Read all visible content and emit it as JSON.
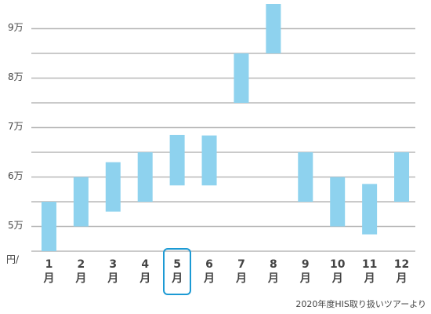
{
  "chart_data": {
    "type": "floating-bar",
    "unit_label": "円/",
    "source": "2020年度HIS取り扱いツアーより",
    "categories": [
      "1\n月",
      "2\n月",
      "3\n月",
      "4\n月",
      "5\n月",
      "6\n月",
      "7\n月",
      "8\n月",
      "9\n月",
      "10\n月",
      "11\n月",
      "12\n月"
    ],
    "low": [
      45000,
      50000,
      53000,
      55000,
      58300,
      58300,
      75000,
      85000,
      55000,
      50000,
      48400,
      55000
    ],
    "high": [
      55000,
      60000,
      63000,
      65000,
      68500,
      68400,
      85000,
      95000,
      65000,
      60000,
      58600,
      65000
    ],
    "color": "#8ed2ee",
    "highlight_index": 4,
    "highlight_color": "#1c9ad4",
    "ylim": [
      45000,
      95000
    ],
    "yticks": [
      {
        "value": 50000,
        "label": "5万"
      },
      {
        "value": 60000,
        "label": "6万"
      },
      {
        "value": 70000,
        "label": "7万"
      },
      {
        "value": 80000,
        "label": "8万"
      },
      {
        "value": 90000,
        "label": "9万"
      }
    ],
    "minor_gridlines": [
      45000,
      55000,
      65000,
      75000,
      85000
    ],
    "grid": true
  }
}
